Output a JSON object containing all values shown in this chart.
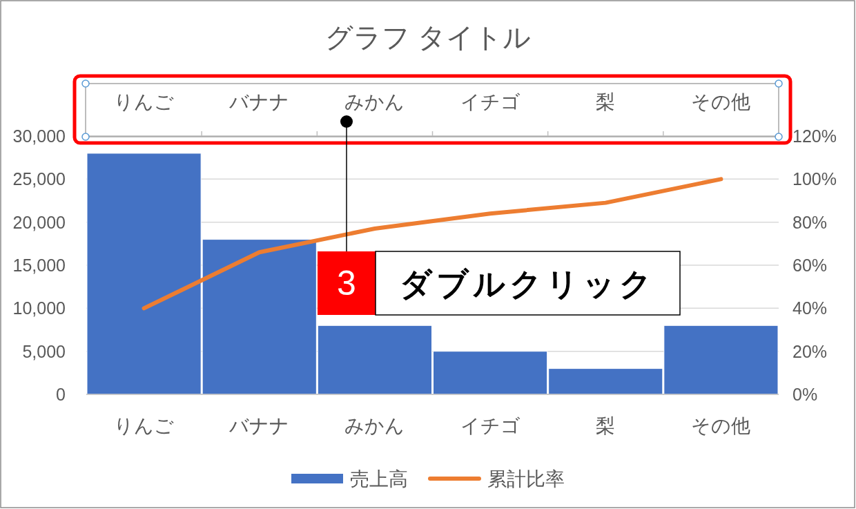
{
  "chart_data": {
    "type": "bar",
    "title": "グラフ タイトル",
    "categories": [
      "りんご",
      "バナナ",
      "みかん",
      "イチゴ",
      "梨",
      "その他"
    ],
    "series": [
      {
        "name": "売上高",
        "color": "#4472c4",
        "values": [
          28000,
          18000,
          8000,
          5000,
          3000,
          8000
        ]
      },
      {
        "name": "累計比率",
        "type": "line",
        "axis": "y2",
        "color": "#ed7d31",
        "values": [
          40,
          66,
          77,
          84,
          89,
          100
        ]
      }
    ],
    "ylim": [
      0,
      30000
    ],
    "yticks": [
      0,
      {
        "value": 5000,
        "label": "5,000"
      },
      {
        "value": 10000,
        "label": "10,000"
      },
      {
        "value": 15000,
        "label": "15,000"
      },
      {
        "value": 20000,
        "label": "20,000"
      },
      {
        "value": 25000,
        "label": "25,000"
      },
      {
        "value": 30000,
        "label": "30,000"
      }
    ],
    "y2lim": [
      0,
      120
    ],
    "y2ticks": [
      {
        "value": 0,
        "label": "0%"
      },
      {
        "value": 20,
        "label": "20%"
      },
      {
        "value": 40,
        "label": "40%"
      },
      {
        "value": 60,
        "label": "60%"
      },
      {
        "value": 80,
        "label": "80%"
      },
      {
        "value": 100,
        "label": "100%"
      },
      {
        "value": 120,
        "label": "120%"
      }
    ],
    "grid": "y",
    "legend": "bottom",
    "annotations": [
      "3",
      "ダブルクリック"
    ]
  }
}
